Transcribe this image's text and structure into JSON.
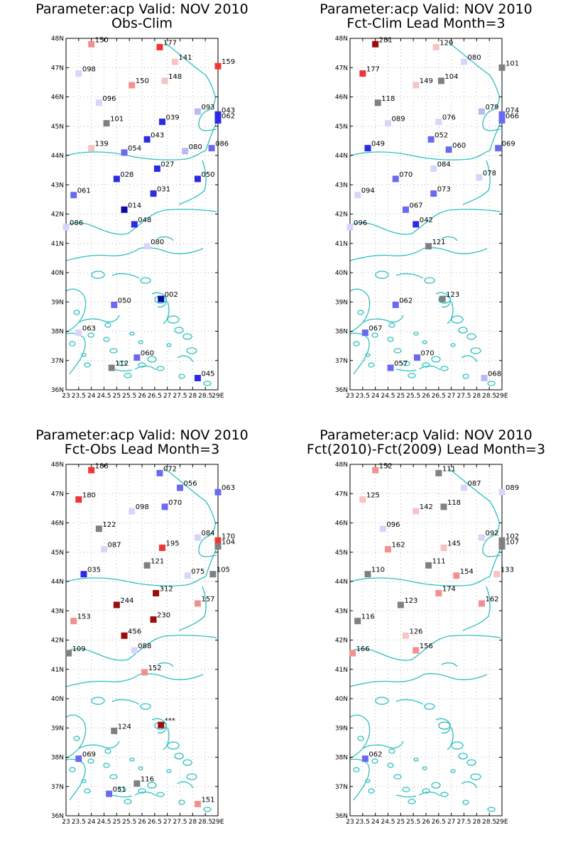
{
  "colors": {
    "coast": "#2ebfbf",
    "grid": "#b4b4b4",
    "scale": {
      "dark_blue": "#0b0b9e",
      "blue": "#2b2be6",
      "mid_blue": "#6a6af0",
      "light_blue": "#b9b9f4",
      "pale_blue": "#d6d6fb",
      "grey": "#808080",
      "pale_red": "#f7c4c4",
      "light_red": "#f29090",
      "red": "#f03535",
      "dark_red": "#9b0c0c"
    }
  },
  "axes": {
    "y_labels": [
      "48N",
      "47N",
      "46N",
      "45N",
      "44N",
      "43N",
      "42N",
      "41N",
      "40N",
      "39N",
      "38N",
      "37N",
      "36N"
    ],
    "x_labels": [
      "23",
      "23.5",
      "24",
      "24.5",
      "25",
      "25.5",
      "26",
      "26.5",
      "27",
      "27.5",
      "28",
      "28.5",
      "29E"
    ],
    "lat_range": [
      36,
      48
    ],
    "lon_range": [
      23,
      29
    ]
  },
  "panels": [
    {
      "title1": "Parameter:acp Valid: NOV 2010",
      "title2": "Obs-Clim",
      "points": [
        {
          "lon": 24.0,
          "lat": 47.8,
          "label": "150",
          "color": "light_red"
        },
        {
          "lon": 26.7,
          "lat": 47.7,
          "label": "177",
          "color": "red"
        },
        {
          "lon": 27.3,
          "lat": 47.2,
          "label": "141",
          "color": "pale_red"
        },
        {
          "lon": 29.0,
          "lat": 47.05,
          "label": "159",
          "color": "red"
        },
        {
          "lon": 23.5,
          "lat": 46.8,
          "label": "098",
          "color": "pale_blue"
        },
        {
          "lon": 25.6,
          "lat": 46.4,
          "label": "150",
          "color": "light_red"
        },
        {
          "lon": 26.9,
          "lat": 46.55,
          "label": "148",
          "color": "pale_red"
        },
        {
          "lon": 24.3,
          "lat": 45.8,
          "label": "096",
          "color": "pale_blue"
        },
        {
          "lon": 28.2,
          "lat": 45.5,
          "label": "093",
          "color": "light_blue"
        },
        {
          "lon": 29.0,
          "lat": 45.4,
          "label": "043",
          "color": "blue"
        },
        {
          "lon": 29.0,
          "lat": 45.2,
          "label": "062",
          "color": "blue"
        },
        {
          "lon": 24.6,
          "lat": 45.1,
          "label": "101",
          "color": "grey"
        },
        {
          "lon": 26.8,
          "lat": 45.15,
          "label": "039",
          "color": "blue"
        },
        {
          "lon": 26.2,
          "lat": 44.55,
          "label": "043",
          "color": "blue"
        },
        {
          "lon": 24.0,
          "lat": 44.25,
          "label": "139",
          "color": "pale_red"
        },
        {
          "lon": 25.3,
          "lat": 44.1,
          "label": "054",
          "color": "mid_blue"
        },
        {
          "lon": 27.7,
          "lat": 44.15,
          "label": "080",
          "color": "light_blue"
        },
        {
          "lon": 28.75,
          "lat": 44.25,
          "label": "086",
          "color": "mid_blue"
        },
        {
          "lon": 26.6,
          "lat": 43.55,
          "label": "027",
          "color": "blue"
        },
        {
          "lon": 25.0,
          "lat": 43.2,
          "label": "028",
          "color": "blue"
        },
        {
          "lon": 28.2,
          "lat": 43.2,
          "label": "050",
          "color": "blue"
        },
        {
          "lon": 23.3,
          "lat": 42.65,
          "label": "061",
          "color": "mid_blue"
        },
        {
          "lon": 26.45,
          "lat": 42.7,
          "label": "031",
          "color": "blue"
        },
        {
          "lon": 25.3,
          "lat": 42.15,
          "label": "014",
          "color": "dark_blue"
        },
        {
          "lon": 25.7,
          "lat": 41.65,
          "label": "048",
          "color": "blue"
        },
        {
          "lon": 23.0,
          "lat": 41.55,
          "label": "086",
          "color": "pale_blue"
        },
        {
          "lon": 26.2,
          "lat": 40.9,
          "label": "080",
          "color": "pale_blue"
        },
        {
          "lon": 26.75,
          "lat": 39.1,
          "label": "002",
          "color": "dark_blue"
        },
        {
          "lon": 24.9,
          "lat": 38.9,
          "label": "050",
          "color": "mid_blue"
        },
        {
          "lon": 23.5,
          "lat": 37.95,
          "label": "063",
          "color": "pale_blue"
        },
        {
          "lon": 25.8,
          "lat": 37.1,
          "label": "060",
          "color": "mid_blue"
        },
        {
          "lon": 24.8,
          "lat": 36.75,
          "label": "112",
          "color": "grey"
        },
        {
          "lon": 28.2,
          "lat": 36.4,
          "label": "045",
          "color": "blue"
        }
      ]
    },
    {
      "title1": "Parameter:acp Valid: NOV 2010",
      "title2": "Fct-Clim Lead Month=3",
      "points": [
        {
          "lon": 24.0,
          "lat": 47.8,
          "label": "281",
          "color": "dark_red"
        },
        {
          "lon": 26.4,
          "lat": 47.7,
          "label": "129",
          "color": "pale_red"
        },
        {
          "lon": 27.5,
          "lat": 47.2,
          "label": "080",
          "color": "pale_blue"
        },
        {
          "lon": 29.0,
          "lat": 47.0,
          "label": "101",
          "color": "grey"
        },
        {
          "lon": 23.5,
          "lat": 46.8,
          "label": "177",
          "color": "red"
        },
        {
          "lon": 25.6,
          "lat": 46.4,
          "label": "149",
          "color": "pale_red"
        },
        {
          "lon": 26.6,
          "lat": 46.55,
          "label": "104",
          "color": "grey"
        },
        {
          "lon": 24.1,
          "lat": 45.8,
          "label": "118",
          "color": "grey"
        },
        {
          "lon": 28.2,
          "lat": 45.5,
          "label": "079",
          "color": "light_blue"
        },
        {
          "lon": 29.0,
          "lat": 45.4,
          "label": "074",
          "color": "mid_blue"
        },
        {
          "lon": 29.0,
          "lat": 45.2,
          "label": "066",
          "color": "mid_blue"
        },
        {
          "lon": 24.5,
          "lat": 45.1,
          "label": "089",
          "color": "pale_blue"
        },
        {
          "lon": 26.5,
          "lat": 45.15,
          "label": "076",
          "color": "pale_blue"
        },
        {
          "lon": 26.2,
          "lat": 44.55,
          "label": "052",
          "color": "mid_blue"
        },
        {
          "lon": 23.7,
          "lat": 44.25,
          "label": "049",
          "color": "blue"
        },
        {
          "lon": 26.9,
          "lat": 44.2,
          "label": "060",
          "color": "mid_blue"
        },
        {
          "lon": 28.85,
          "lat": 44.25,
          "label": "069",
          "color": "mid_blue"
        },
        {
          "lon": 26.3,
          "lat": 43.55,
          "label": "084",
          "color": "pale_blue"
        },
        {
          "lon": 28.1,
          "lat": 43.25,
          "label": "078",
          "color": "pale_blue"
        },
        {
          "lon": 24.8,
          "lat": 43.2,
          "label": "070",
          "color": "mid_blue"
        },
        {
          "lon": 23.3,
          "lat": 42.65,
          "label": "094",
          "color": "pale_blue"
        },
        {
          "lon": 26.3,
          "lat": 42.7,
          "label": "073",
          "color": "mid_blue"
        },
        {
          "lon": 25.2,
          "lat": 42.15,
          "label": "067",
          "color": "mid_blue"
        },
        {
          "lon": 25.6,
          "lat": 41.65,
          "label": "042",
          "color": "blue"
        },
        {
          "lon": 23.0,
          "lat": 41.55,
          "label": "096",
          "color": "pale_blue"
        },
        {
          "lon": 26.1,
          "lat": 40.9,
          "label": "121",
          "color": "grey"
        },
        {
          "lon": 26.65,
          "lat": 39.1,
          "label": "123",
          "color": "grey"
        },
        {
          "lon": 24.8,
          "lat": 38.9,
          "label": "062",
          "color": "mid_blue"
        },
        {
          "lon": 23.6,
          "lat": 37.95,
          "label": "067",
          "color": "mid_blue"
        },
        {
          "lon": 25.65,
          "lat": 37.1,
          "label": "070",
          "color": "mid_blue"
        },
        {
          "lon": 24.6,
          "lat": 36.75,
          "label": "057",
          "color": "mid_blue"
        },
        {
          "lon": 28.3,
          "lat": 36.4,
          "label": "068",
          "color": "light_blue"
        }
      ]
    },
    {
      "title1": "Parameter:acp Valid: NOV 2010",
      "title2": "Fct-Obs Lead Month=3",
      "points": [
        {
          "lon": 24.0,
          "lat": 47.8,
          "label": "186",
          "color": "red"
        },
        {
          "lon": 26.7,
          "lat": 47.7,
          "label": "072",
          "color": "mid_blue"
        },
        {
          "lon": 27.5,
          "lat": 47.2,
          "label": "056",
          "color": "mid_blue"
        },
        {
          "lon": 29.0,
          "lat": 47.05,
          "label": "063",
          "color": "mid_blue"
        },
        {
          "lon": 23.5,
          "lat": 46.8,
          "label": "180",
          "color": "red"
        },
        {
          "lon": 25.6,
          "lat": 46.4,
          "label": "098",
          "color": "pale_blue"
        },
        {
          "lon": 26.9,
          "lat": 46.55,
          "label": "070",
          "color": "mid_blue"
        },
        {
          "lon": 24.3,
          "lat": 45.8,
          "label": "122",
          "color": "grey"
        },
        {
          "lon": 28.2,
          "lat": 45.5,
          "label": "084",
          "color": "pale_blue"
        },
        {
          "lon": 29.0,
          "lat": 45.4,
          "label": "170",
          "color": "red"
        },
        {
          "lon": 29.0,
          "lat": 45.2,
          "label": "104",
          "color": "grey"
        },
        {
          "lon": 24.5,
          "lat": 45.1,
          "label": "087",
          "color": "pale_blue"
        },
        {
          "lon": 26.8,
          "lat": 45.15,
          "label": "195",
          "color": "red"
        },
        {
          "lon": 26.2,
          "lat": 44.55,
          "label": "121",
          "color": "grey"
        },
        {
          "lon": 23.7,
          "lat": 44.25,
          "label": "035",
          "color": "blue"
        },
        {
          "lon": 27.8,
          "lat": 44.2,
          "label": "075",
          "color": "pale_blue"
        },
        {
          "lon": 28.8,
          "lat": 44.25,
          "label": "105",
          "color": "grey"
        },
        {
          "lon": 26.55,
          "lat": 43.6,
          "label": "312",
          "color": "dark_red"
        },
        {
          "lon": 25.0,
          "lat": 43.2,
          "label": "244",
          "color": "dark_red"
        },
        {
          "lon": 28.2,
          "lat": 43.25,
          "label": "157",
          "color": "light_red"
        },
        {
          "lon": 23.3,
          "lat": 42.65,
          "label": "153",
          "color": "light_red"
        },
        {
          "lon": 26.45,
          "lat": 42.7,
          "label": "230",
          "color": "dark_red"
        },
        {
          "lon": 25.3,
          "lat": 42.15,
          "label": "456",
          "color": "dark_red"
        },
        {
          "lon": 25.7,
          "lat": 41.65,
          "label": "088",
          "color": "pale_blue"
        },
        {
          "lon": 23.1,
          "lat": 41.55,
          "label": "109",
          "color": "grey"
        },
        {
          "lon": 26.1,
          "lat": 40.9,
          "label": "152",
          "color": "light_red"
        },
        {
          "lon": 26.75,
          "lat": 39.1,
          "label": "***",
          "color": "dark_red"
        },
        {
          "lon": 24.9,
          "lat": 38.9,
          "label": "124",
          "color": "grey"
        },
        {
          "lon": 23.5,
          "lat": 37.95,
          "label": "069",
          "color": "mid_blue"
        },
        {
          "lon": 25.8,
          "lat": 37.1,
          "label": "116",
          "color": "grey"
        },
        {
          "lon": 24.7,
          "lat": 36.75,
          "label": "051",
          "color": "mid_blue"
        },
        {
          "lon": 28.2,
          "lat": 36.4,
          "label": "151",
          "color": "light_red"
        }
      ]
    },
    {
      "title1": "Parameter:acp Valid: NOV 2010",
      "title2": "Fct(2010)-Fct(2009) Lead Month=3",
      "points": [
        {
          "lon": 24.0,
          "lat": 47.8,
          "label": "152",
          "color": "light_red"
        },
        {
          "lon": 26.5,
          "lat": 47.7,
          "label": "111",
          "color": "grey"
        },
        {
          "lon": 27.5,
          "lat": 47.2,
          "label": "087",
          "color": "pale_blue"
        },
        {
          "lon": 29.0,
          "lat": 47.05,
          "label": "089",
          "color": "pale_blue"
        },
        {
          "lon": 23.5,
          "lat": 46.8,
          "label": "125",
          "color": "pale_red"
        },
        {
          "lon": 25.6,
          "lat": 46.4,
          "label": "142",
          "color": "pale_red"
        },
        {
          "lon": 26.7,
          "lat": 46.55,
          "label": "118",
          "color": "grey"
        },
        {
          "lon": 24.3,
          "lat": 45.8,
          "label": "096",
          "color": "pale_blue"
        },
        {
          "lon": 28.2,
          "lat": 45.5,
          "label": "092",
          "color": "pale_blue"
        },
        {
          "lon": 29.0,
          "lat": 45.4,
          "label": "102",
          "color": "grey"
        },
        {
          "lon": 29.0,
          "lat": 45.2,
          "label": "107",
          "color": "grey"
        },
        {
          "lon": 24.5,
          "lat": 45.1,
          "label": "162",
          "color": "light_red"
        },
        {
          "lon": 26.7,
          "lat": 45.15,
          "label": "145",
          "color": "pale_red"
        },
        {
          "lon": 26.1,
          "lat": 44.55,
          "label": "111",
          "color": "grey"
        },
        {
          "lon": 23.7,
          "lat": 44.25,
          "label": "110",
          "color": "grey"
        },
        {
          "lon": 27.2,
          "lat": 44.2,
          "label": "154",
          "color": "light_red"
        },
        {
          "lon": 28.8,
          "lat": 44.25,
          "label": "133",
          "color": "pale_red"
        },
        {
          "lon": 26.5,
          "lat": 43.6,
          "label": "174",
          "color": "light_red"
        },
        {
          "lon": 25.0,
          "lat": 43.2,
          "label": "123",
          "color": "grey"
        },
        {
          "lon": 28.2,
          "lat": 43.25,
          "label": "162",
          "color": "light_red"
        },
        {
          "lon": 23.3,
          "lat": 42.65,
          "label": "116",
          "color": "grey"
        },
        {
          "lon": 25.2,
          "lat": 42.15,
          "label": "126",
          "color": "pale_red"
        },
        {
          "lon": 25.6,
          "lat": 41.65,
          "label": "156",
          "color": "light_red"
        },
        {
          "lon": 23.1,
          "lat": 41.55,
          "label": "166",
          "color": "light_red"
        },
        {
          "lon": 23.6,
          "lat": 37.95,
          "label": "062",
          "color": "mid_blue"
        }
      ]
    }
  ]
}
